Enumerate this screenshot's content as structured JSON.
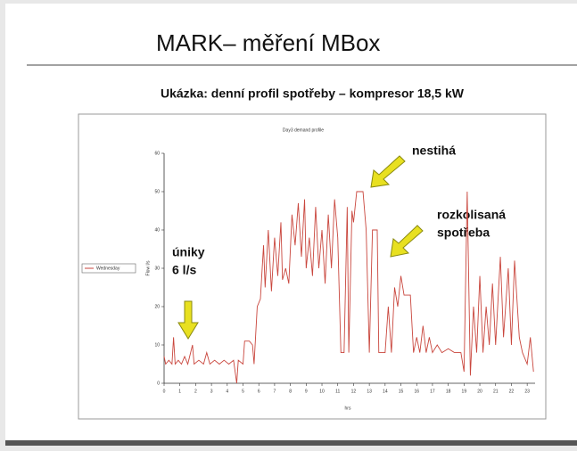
{
  "slide_title": "MARK– měření MBox",
  "subtitle": "Ukázka: denní profil spotřeby – kompresor 18,5 kW",
  "annotations": [
    "nestihá",
    "rozkolisaná",
    "spotřeba",
    "úniky",
    "6 l/s"
  ],
  "chart_data": {
    "type": "line",
    "title": "Day3 demand profile",
    "x_label": "hrs",
    "y_label": "Flow l/s",
    "xlim": [
      0,
      23.5
    ],
    "ylim": [
      0,
      60
    ],
    "xticks": [
      0,
      1,
      2,
      3,
      4,
      5,
      6,
      7,
      8,
      9,
      10,
      11,
      12,
      13,
      14,
      15,
      16,
      17,
      18,
      19,
      20,
      21,
      22,
      23
    ],
    "yticks": [
      0,
      10,
      20,
      30,
      40,
      50,
      60
    ],
    "grid": false,
    "x": [
      0,
      0.1,
      0.3,
      0.5,
      0.6,
      0.7,
      0.9,
      1.1,
      1.3,
      1.5,
      1.8,
      1.9,
      2.2,
      2.5,
      2.7,
      2.9,
      3.2,
      3.5,
      3.8,
      4.1,
      4.4,
      4.6,
      4.7,
      5.0,
      5.1,
      5.4,
      5.6,
      5.7,
      5.9,
      6.1,
      6.3,
      6.4,
      6.6,
      6.8,
      7.0,
      7.2,
      7.4,
      7.5,
      7.7,
      7.9,
      8.1,
      8.3,
      8.5,
      8.7,
      8.9,
      9.0,
      9.2,
      9.4,
      9.6,
      9.8,
      10.0,
      10.2,
      10.4,
      10.6,
      10.8,
      11.0,
      11.2,
      11.4,
      11.6,
      11.7,
      11.9,
      12.0,
      12.2,
      12.6,
      12.8,
      13.0,
      13.2,
      13.5,
      13.6,
      14.0,
      14.2,
      14.4,
      14.6,
      14.8,
      15.0,
      15.2,
      15.6,
      15.8,
      16.0,
      16.2,
      16.4,
      16.6,
      16.8,
      17.0,
      17.3,
      17.6,
      18.0,
      18.4,
      18.8,
      19.0,
      19.2,
      19.4,
      19.6,
      19.8,
      20.0,
      20.2,
      20.4,
      20.6,
      20.8,
      21.0,
      21.3,
      21.5,
      21.8,
      22.0,
      22.2,
      22.5,
      22.7,
      23.0,
      23.2,
      23.4
    ],
    "series": [
      {
        "name": "Wednesday",
        "color": "#c9463d",
        "values": [
          7,
          5,
          6,
          5,
          12,
          5,
          6,
          5,
          7,
          5,
          10,
          5,
          6,
          5,
          8,
          5,
          6,
          5,
          6,
          5,
          6,
          0,
          6,
          5,
          11,
          11,
          10,
          5,
          20,
          22,
          36,
          25,
          40,
          24,
          38,
          28,
          42,
          27,
          30,
          26,
          44,
          36,
          47,
          33,
          48,
          30,
          38,
          28,
          46,
          30,
          40,
          26,
          44,
          30,
          48,
          38,
          8,
          8,
          46,
          8,
          45,
          42,
          50,
          50,
          40,
          8,
          40,
          40,
          8,
          8,
          20,
          8,
          25,
          20,
          28,
          23,
          23,
          8,
          12,
          8,
          15,
          8,
          12,
          8,
          10,
          8,
          9,
          8,
          8,
          3,
          50,
          2,
          20,
          8,
          28,
          8,
          20,
          10,
          26,
          10,
          33,
          12,
          30,
          10,
          32,
          12,
          8,
          5,
          12,
          3
        ]
      }
    ]
  }
}
